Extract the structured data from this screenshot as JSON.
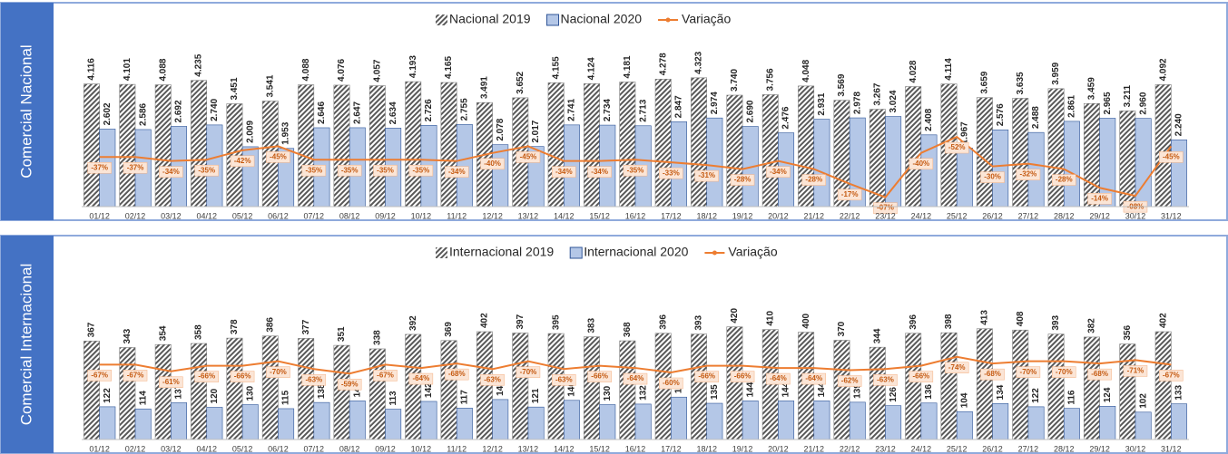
{
  "chart_data": [
    {
      "type": "bar_line",
      "panel_label": "Comercial Nacional",
      "categories": [
        "01/12",
        "02/12",
        "03/12",
        "04/12",
        "05/12",
        "06/12",
        "07/12",
        "08/12",
        "09/12",
        "10/12",
        "11/12",
        "12/12",
        "13/12",
        "14/12",
        "15/12",
        "16/12",
        "17/12",
        "18/12",
        "19/12",
        "20/12",
        "21/12",
        "22/12",
        "23/12",
        "24/12",
        "25/12",
        "26/12",
        "27/12",
        "28/12",
        "29/12",
        "30/12",
        "31/12"
      ],
      "series": [
        {
          "name": "Nacional 2019",
          "color": "#595959",
          "pattern": "hatch",
          "values": [
            4116,
            4101,
            4088,
            4235,
            3451,
            3541,
            4088,
            4076,
            4057,
            4193,
            4165,
            3491,
            3652,
            4155,
            4124,
            4181,
            4278,
            4323,
            3740,
            3756,
            4048,
            3569,
            3267,
            4028,
            4114,
            3659,
            3635,
            3959,
            3459,
            3211,
            4092
          ],
          "value_labels": [
            "4.116",
            "4.101",
            "4.088",
            "4.235",
            "3.451",
            "3.541",
            "4.088",
            "4.076",
            "4.057",
            "4.193",
            "4.165",
            "3.491",
            "3.652",
            "4.155",
            "4.124",
            "4.181",
            "4.278",
            "4.323",
            "3.740",
            "3.756",
            "4.048",
            "3.569",
            "3.267",
            "4.028",
            "4.114",
            "3.659",
            "3.635",
            "3.959",
            "3.459",
            "3.211",
            "4.092"
          ]
        },
        {
          "name": "Nacional 2020",
          "color": "#b4c7e7",
          "border": "#2f5597",
          "values": [
            2602,
            2586,
            2692,
            2740,
            2009,
            1953,
            2646,
            2647,
            2634,
            2726,
            2755,
            2078,
            2017,
            2741,
            2734,
            2713,
            2847,
            2974,
            2690,
            2476,
            2931,
            2978,
            3024,
            2408,
            1967,
            2576,
            2488,
            2861,
            2965,
            2960,
            2240
          ],
          "value_labels": [
            "2.602",
            "2.586",
            "2.692",
            "2.740",
            "2.009",
            "1.953",
            "2.646",
            "2.647",
            "2.634",
            "2.726",
            "2.755",
            "2.078",
            "2.017",
            "2.741",
            "2.734",
            "2.713",
            "2.847",
            "2.974",
            "2.690",
            "2.476",
            "2.931",
            "2.978",
            "3.024",
            "2.408",
            "1.967",
            "2.576",
            "2.488",
            "2.861",
            "2.965",
            "2.960",
            "2.240"
          ]
        },
        {
          "name": "Variação",
          "color": "#ed7d31",
          "type": "line",
          "axis": "y2",
          "values": [
            -37,
            -37,
            -34,
            -35,
            -42,
            -45,
            -35,
            -35,
            -35,
            -35,
            -34,
            -40,
            -45,
            -34,
            -34,
            -35,
            -33,
            -31,
            -28,
            -34,
            -28,
            -17,
            -7,
            -40,
            -52,
            -30,
            -32,
            -28,
            -14,
            -8,
            -45
          ],
          "value_labels": [
            "-37%",
            "-37%",
            "-34%",
            "-35%",
            "-42%",
            "-45%",
            "-35%",
            "-35%",
            "-35%",
            "-35%",
            "-34%",
            "-40%",
            "-45%",
            "-34%",
            "-34%",
            "-35%",
            "-33%",
            "-31%",
            "-28%",
            "-34%",
            "-28%",
            "-17%",
            "-07%",
            "-40%",
            "-52%",
            "-30%",
            "-32%",
            "-28%",
            "-14%",
            "-08%",
            "-45%"
          ]
        }
      ],
      "ylim": [
        0,
        4500
      ],
      "y2lim": [
        0,
        -100
      ],
      "legend": "top"
    },
    {
      "type": "bar_line",
      "panel_label": "Comercial Internacional",
      "categories": [
        "01/12",
        "02/12",
        "03/12",
        "04/12",
        "05/12",
        "06/12",
        "07/12",
        "08/12",
        "09/12",
        "10/12",
        "11/12",
        "12/12",
        "13/12",
        "14/12",
        "15/12",
        "16/12",
        "17/12",
        "18/12",
        "19/12",
        "20/12",
        "21/12",
        "22/12",
        "23/12",
        "24/12",
        "25/12",
        "26/12",
        "27/12",
        "28/12",
        "29/12",
        "30/12",
        "31/12"
      ],
      "series": [
        {
          "name": "Internacional 2019",
          "color": "#595959",
          "pattern": "hatch",
          "values": [
            367,
            343,
            354,
            358,
            378,
            386,
            377,
            351,
            338,
            392,
            369,
            402,
            397,
            395,
            383,
            368,
            396,
            393,
            420,
            410,
            400,
            370,
            344,
            396,
            398,
            413,
            408,
            393,
            382,
            356,
            402
          ]
        },
        {
          "name": "Internacional 2020",
          "color": "#b4c7e7",
          "border": "#2f5597",
          "values": [
            122,
            114,
            137,
            120,
            130,
            115,
            138,
            144,
            113,
            142,
            117,
            149,
            121,
            146,
            130,
            132,
            158,
            135,
            144,
            144,
            144,
            139,
            126,
            136,
            104,
            134,
            122,
            116,
            124,
            102,
            133
          ]
        },
        {
          "name": "Variação",
          "color": "#ed7d31",
          "type": "line",
          "axis": "y2",
          "values": [
            -67,
            -67,
            -61,
            -66,
            -66,
            -70,
            -63,
            -59,
            -67,
            -64,
            -68,
            -63,
            -70,
            -63,
            -66,
            -64,
            -60,
            -66,
            -66,
            -64,
            -64,
            -62,
            -63,
            -66,
            -74,
            -68,
            -70,
            -70,
            -68,
            -71,
            -67
          ],
          "value_labels": [
            "-67%",
            "-67%",
            "-61%",
            "-66%",
            "-66%",
            "-70%",
            "-63%",
            "-59%",
            "-67%",
            "-64%",
            "-68%",
            "-63%",
            "-70%",
            "-63%",
            "-66%",
            "-64%",
            "-60%",
            "-66%",
            "-66%",
            "-64%",
            "-64%",
            "-62%",
            "-63%",
            "-66%",
            "-74%",
            "-68%",
            "-70%",
            "-70%",
            "-68%",
            "-71%",
            "-67%"
          ]
        }
      ],
      "ylim": [
        0,
        500
      ],
      "y2lim": [
        0,
        -120
      ],
      "legend": "top"
    }
  ]
}
